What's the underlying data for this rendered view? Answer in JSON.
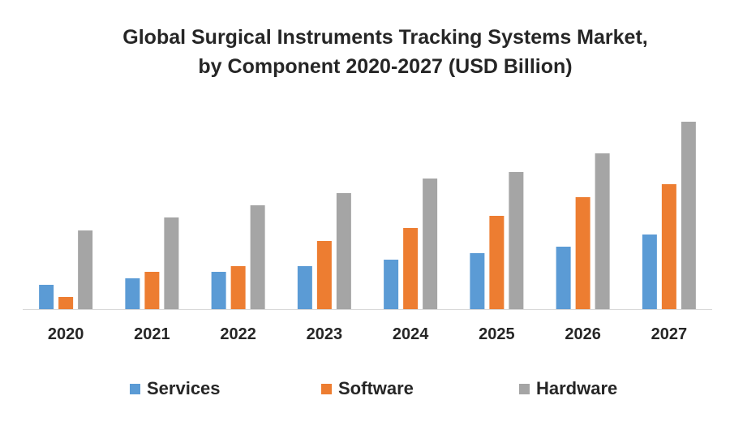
{
  "chart_data": {
    "type": "bar",
    "title_line1": "Global Surgical Instruments Tracking Systems Market,",
    "title_line2": "by Component 2020-2027 (USD Billion)",
    "xlabel": "",
    "ylabel": "",
    "categories": [
      "2020",
      "2021",
      "2022",
      "2023",
      "2024",
      "2025",
      "2026",
      "2027"
    ],
    "series": [
      {
        "name": "Services",
        "color": "#5B9BD5",
        "values": [
          30,
          38,
          46,
          53,
          61,
          69,
          77,
          92
        ]
      },
      {
        "name": "Software",
        "color": "#ED7D31",
        "values": [
          15,
          46,
          53,
          84,
          100,
          115,
          138,
          154
        ]
      },
      {
        "name": "Hardware",
        "color": "#A5A5A5",
        "values": [
          97,
          113,
          128,
          143,
          161,
          169,
          192,
          231
        ]
      }
    ],
    "ylim": [
      0,
      250
    ],
    "grid": false,
    "legend_position": "bottom"
  }
}
